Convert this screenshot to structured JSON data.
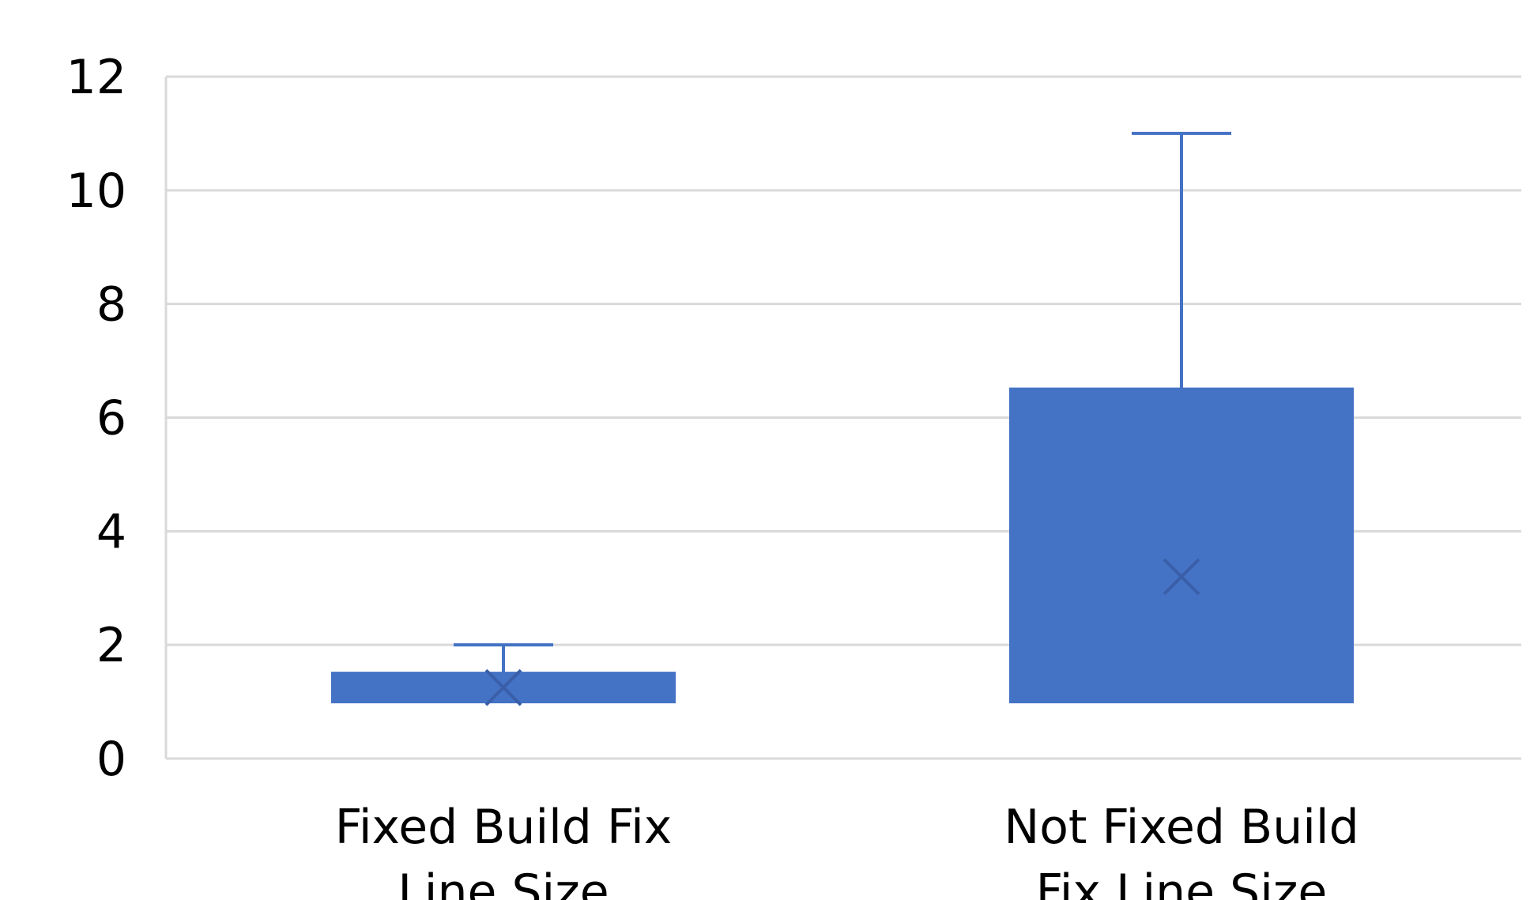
{
  "chart_data": {
    "type": "box",
    "title": "",
    "xlabel": "",
    "ylabel": "",
    "ylim": [
      0,
      12
    ],
    "yticks": [
      0,
      2,
      4,
      6,
      8,
      10,
      12
    ],
    "grid": true,
    "legend": "none",
    "colors": {
      "box_fill": "#4472C4",
      "box_edge": "#4472C4",
      "whisker": "#4472C4",
      "mean_marker": "#3A5FA8",
      "grid": "#D9D9D9",
      "text": "#000000"
    },
    "categories": [
      [
        "Fixed Build Fix",
        "Line Size"
      ],
      [
        "Not Fixed Build",
        "Fix Line Size"
      ]
    ],
    "boxes": [
      {
        "min": 1,
        "q1": 1,
        "median": 1,
        "q3": 1.5,
        "max": 2,
        "mean": 1.25
      },
      {
        "min": 1,
        "q1": 1,
        "median": 1,
        "q3": 6.5,
        "max": 11,
        "mean": 3.2
      }
    ]
  }
}
